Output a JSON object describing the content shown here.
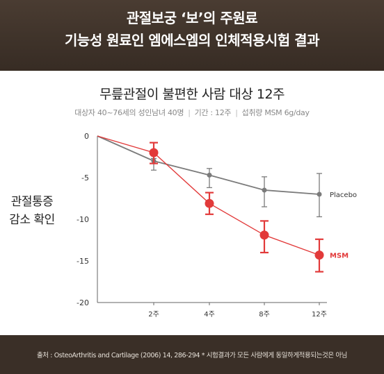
{
  "header": {
    "line1": "관절보궁 ‘보’의 주원료",
    "line2": "기능성 원료인 엠에스엠의 인체적용시험 결과"
  },
  "subtitle": {
    "subjects": "대상자 40~76세의 성인남녀 40명",
    "period": "기간 : 12주",
    "intake": "섭취량 MSM 6g/day"
  },
  "side_label": {
    "line1": "관절통증",
    "line2": "감소 확인"
  },
  "footer": {
    "source": "출처 : OsteoArthritis and Cartilage (2006) 14, 286-294 * 시험결과가 모든 사람에게 동일하게적용되는것은 아님"
  },
  "colors": {
    "placebo": "#7b7b7b",
    "msm": "#e23a3a",
    "header_bg": "#3f332a"
  },
  "chart_data": {
    "type": "line",
    "title": "무릎관절이 불편한 사람 대상 12주",
    "categories": [
      "",
      "2주",
      "4주",
      "8주",
      "12주"
    ],
    "y_ticks": [
      "0",
      "-5",
      "-10",
      "-15",
      "-20"
    ],
    "ylim": [
      -20,
      0
    ],
    "grid": false,
    "series": [
      {
        "name": "Placebo",
        "values": [
          0,
          -3.0,
          -4.7,
          -6.5,
          -7.0
        ],
        "error_low": [
          0,
          -4.1,
          -6.2,
          -8.5,
          -9.7
        ],
        "error_high": [
          0,
          -2.7,
          -3.9,
          -4.9,
          -4.5
        ]
      },
      {
        "name": "MSM",
        "values": [
          0,
          -2.0,
          -8.1,
          -11.9,
          -14.3
        ],
        "error_low": [
          0,
          -3.3,
          -9.4,
          -14.0,
          -16.3
        ],
        "error_high": [
          0,
          -0.8,
          -6.8,
          -10.2,
          -12.4
        ]
      }
    ]
  }
}
